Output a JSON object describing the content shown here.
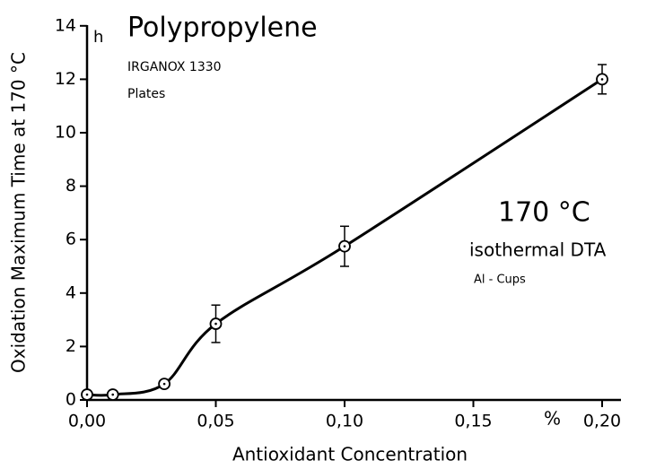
{
  "chart_data": {
    "type": "line",
    "title": "Polypropylene",
    "subtitle": "IRGANOX 1330",
    "annotations": [
      "Plates",
      "170 °C",
      "isothermal DTA",
      "Al - Cups"
    ],
    "x_label": "Antioxidant Concentration",
    "y_label": "Oxidation Maximum Time at 170 °C",
    "x_unit": "%",
    "y_unit": "h",
    "x": [
      0,
      0.01,
      0.03,
      0.05,
      0.1,
      0.2
    ],
    "series": [
      {
        "name": "Oxidation Maximum Time",
        "color": "#000000",
        "values": [
          0.2,
          0.2,
          0.6,
          2.85,
          5.75,
          12.0
        ],
        "errors": [
          null,
          null,
          null,
          0.7,
          0.75,
          0.55
        ]
      }
    ],
    "xlim": [
      0,
      0.2
    ],
    "ylim": [
      0,
      14
    ],
    "xticks": [
      {
        "value": 0,
        "label": "0,00"
      },
      {
        "value": 0.05,
        "label": "0,05"
      },
      {
        "value": 0.1,
        "label": "0,10"
      },
      {
        "value": 0.15,
        "label": "0,15"
      },
      {
        "value": 0.2,
        "label": "0,20"
      }
    ],
    "yticks": [
      0,
      2,
      4,
      6,
      8,
      10,
      12,
      14
    ],
    "grid": false
  }
}
